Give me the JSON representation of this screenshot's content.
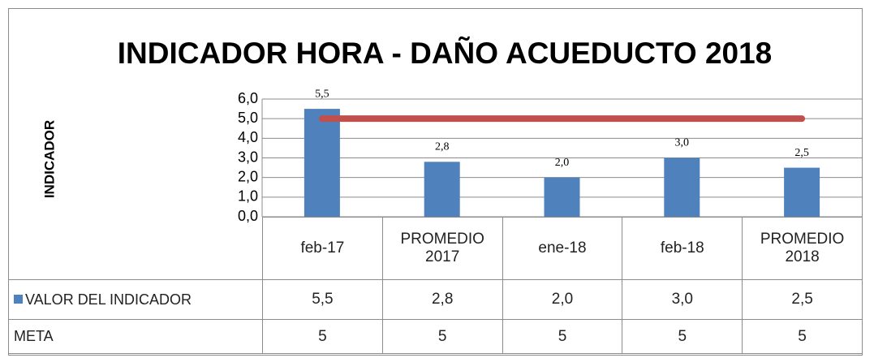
{
  "chart_data": {
    "type": "bar",
    "title": "INDICADOR HORA - DAÑO ACUEDUCTO 2018",
    "y_label": "INDICADOR",
    "categories": [
      "feb-17",
      "PROMEDIO 2017",
      "ene-18",
      "feb-18",
      "PROMEDIO 2018"
    ],
    "series": [
      {
        "name": "VALOR DEL INDICADOR",
        "type": "bar",
        "color": "#4f81bd",
        "values": [
          5.5,
          2.8,
          2.0,
          3.0,
          2.5
        ],
        "value_labels": [
          "5,5",
          "2,8",
          "2,0",
          "3,0",
          "2,5"
        ]
      },
      {
        "name": "META",
        "type": "line",
        "color": "#c0504d",
        "values": [
          5,
          5,
          5,
          5,
          5
        ]
      }
    ],
    "ylim": [
      0,
      6
    ],
    "yticks": [
      {
        "value": 0,
        "label": "0,0"
      },
      {
        "value": 1,
        "label": "1,0"
      },
      {
        "value": 2,
        "label": "2,0"
      },
      {
        "value": 3,
        "label": "3,0"
      },
      {
        "value": 4,
        "label": "4,0"
      },
      {
        "value": 5,
        "label": "5,0"
      },
      {
        "value": 6,
        "label": "6,0"
      }
    ],
    "grid": true
  }
}
